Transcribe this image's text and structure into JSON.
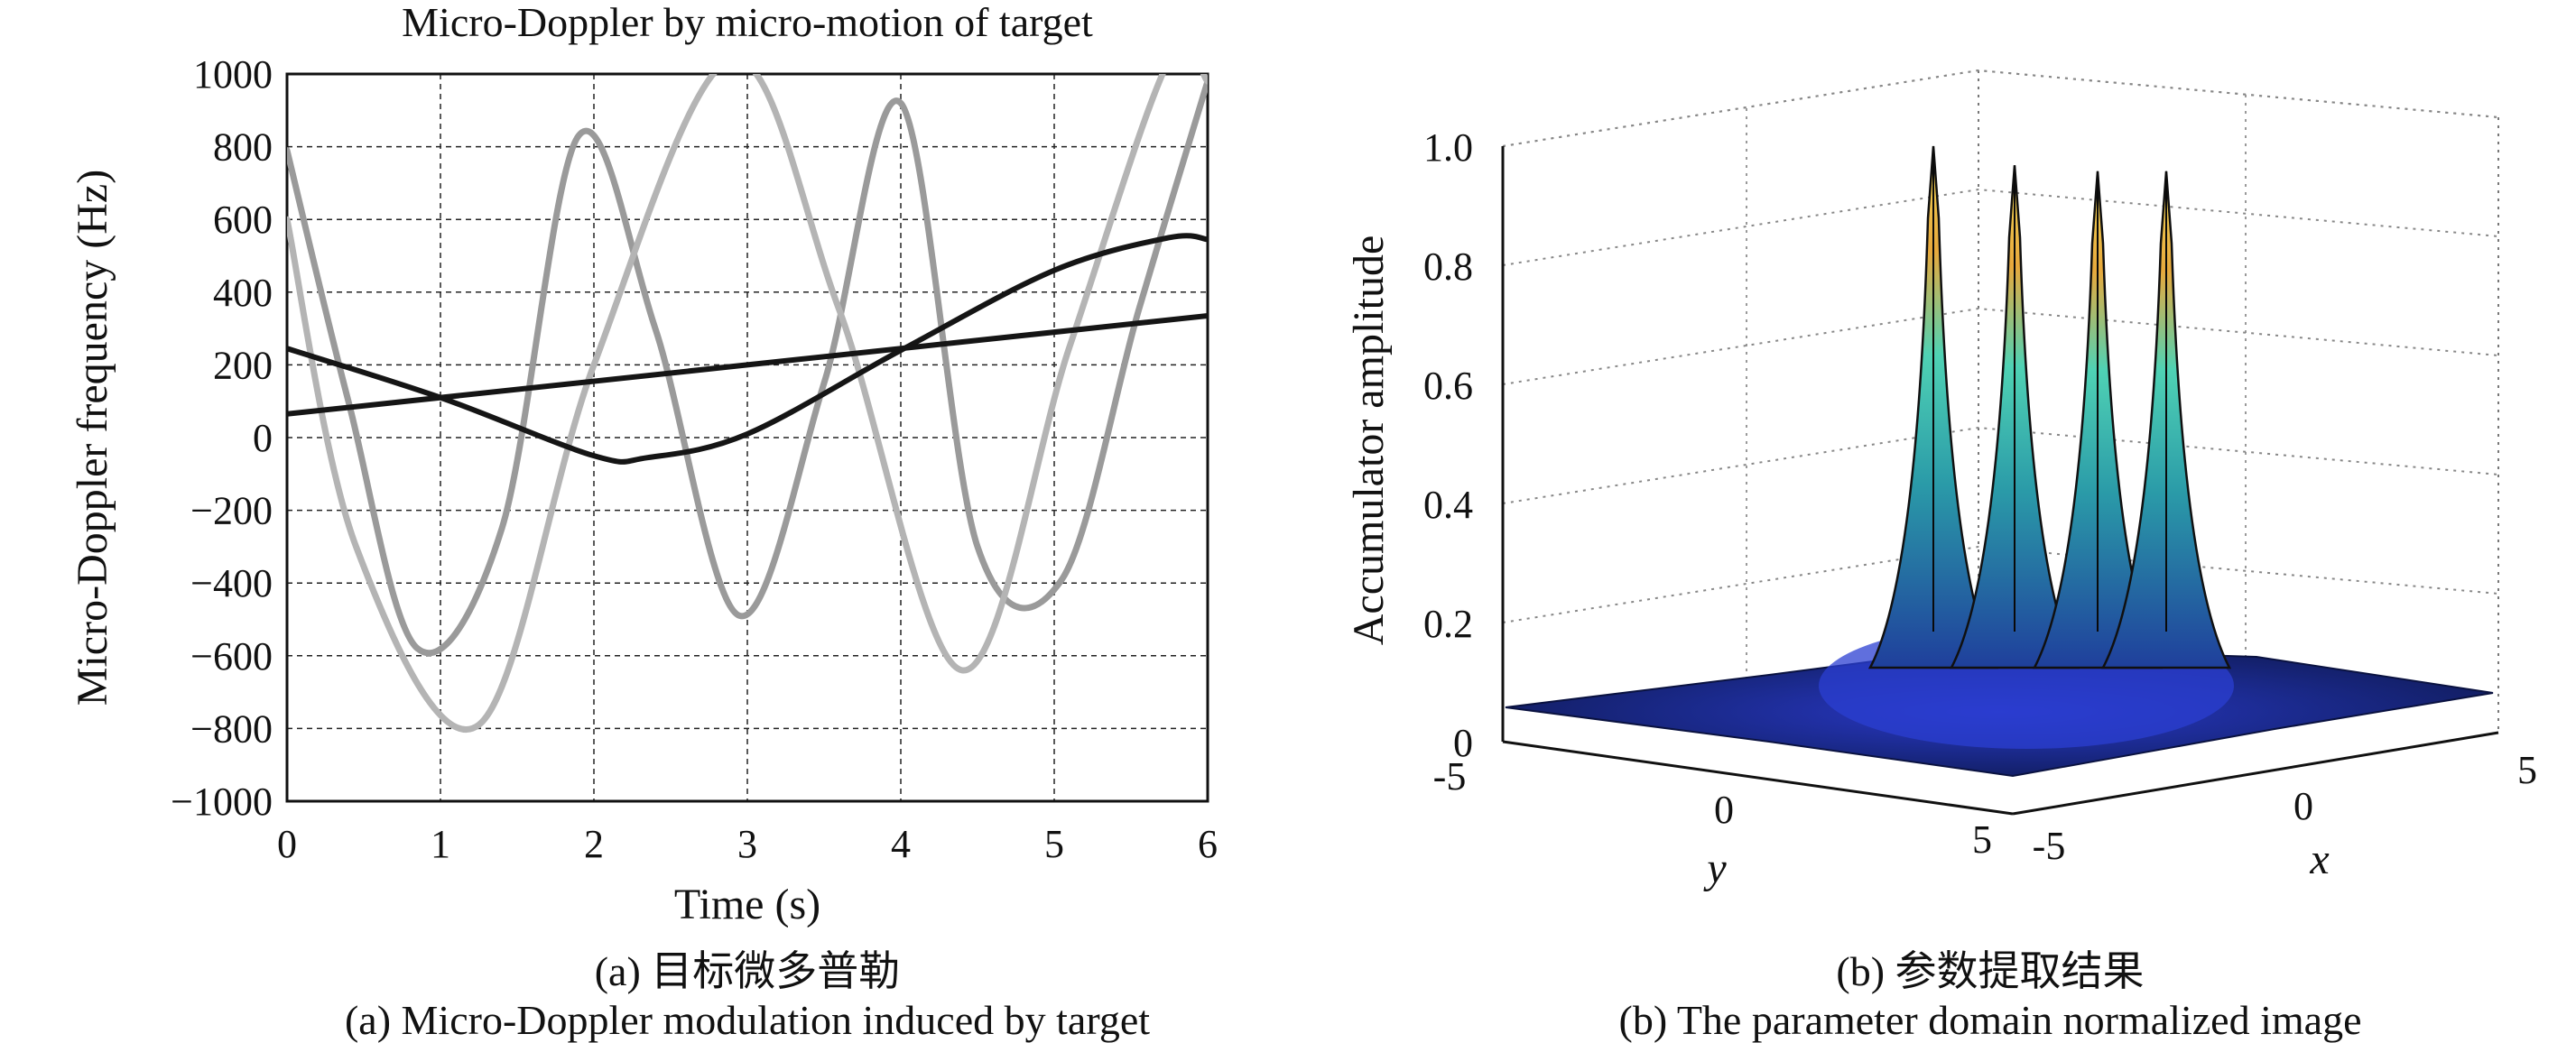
{
  "chart_data": [
    {
      "type": "line",
      "title": "Micro-Doppler by micro-motion of target",
      "xlabel": "Time (s)",
      "ylabel": "Micro-Doppler frequency (Hz)",
      "xlim": [
        0,
        6
      ],
      "ylim": [
        -1000,
        1000
      ],
      "xticks": [
        0,
        1,
        2,
        3,
        4,
        5,
        6
      ],
      "yticks": [
        1000,
        800,
        600,
        400,
        200,
        0,
        -200,
        -400,
        -600,
        -800,
        -1000
      ],
      "xtick_labels": [
        "0",
        "1",
        "2",
        "3",
        "4",
        "5",
        "6"
      ],
      "ytick_labels": [
        "1000",
        "800",
        "600",
        "400",
        "200",
        "0",
        "-200",
        "-400",
        "-600",
        "-800",
        "-1000"
      ],
      "grid": true,
      "series": [
        {
          "color": "#9a9a9a",
          "x": [
            0,
            0.4,
            0.85,
            1.4,
            1.9,
            2.4,
            2.95,
            3.5,
            4.0,
            4.5,
            5.05,
            5.55,
            6.0
          ],
          "y": [
            790,
            100,
            -580,
            -250,
            830,
            300,
            -490,
            150,
            920,
            -300,
            -390,
            350,
            980
          ]
        },
        {
          "color": "#b4b4b4",
          "x": [
            0,
            0.45,
            1.25,
            2.0,
            2.9,
            3.6,
            4.4,
            5.1,
            5.75,
            6.0
          ],
          "y": [
            600,
            -300,
            -790,
            200,
            1040,
            350,
            -640,
            250,
            1040,
            980
          ]
        },
        {
          "color": "#151515",
          "x": [
            0,
            1,
            2,
            2.35,
            3,
            4,
            5,
            5.75,
            6
          ],
          "y": [
            245,
            110,
            -50,
            -55,
            10,
            240,
            460,
            550,
            545
          ]
        },
        {
          "color": "#151515",
          "x": [
            0,
            6
          ],
          "y": [
            65,
            335
          ]
        }
      ],
      "caption_cn": "(a) 目标微多普勒",
      "caption_en": "(a) Micro-Doppler modulation induced by target"
    },
    {
      "type": "surface",
      "zlabel": "Accumulator amplitude",
      "xlabel": "x",
      "ylabel": "y",
      "xlim": [
        -5,
        5
      ],
      "ylim": [
        -5,
        5
      ],
      "zlim": [
        0,
        1
      ],
      "zticks": [
        0,
        0.2,
        0.4,
        0.6,
        0.8,
        1.0
      ],
      "ztick_labels": [
        "0",
        "0.2",
        "0.4",
        "0.6",
        "0.8",
        "1.0"
      ],
      "y_tick_labels": [
        "-5",
        "0",
        "5"
      ],
      "x_tick_labels": [
        "-5",
        "0",
        "5"
      ],
      "peak_amplitudes": [
        1.0,
        0.98,
        0.97,
        0.97
      ],
      "grid": true,
      "caption_cn": "(b) 参数提取结果",
      "caption_en": "(b) The parameter domain normalized image"
    }
  ]
}
